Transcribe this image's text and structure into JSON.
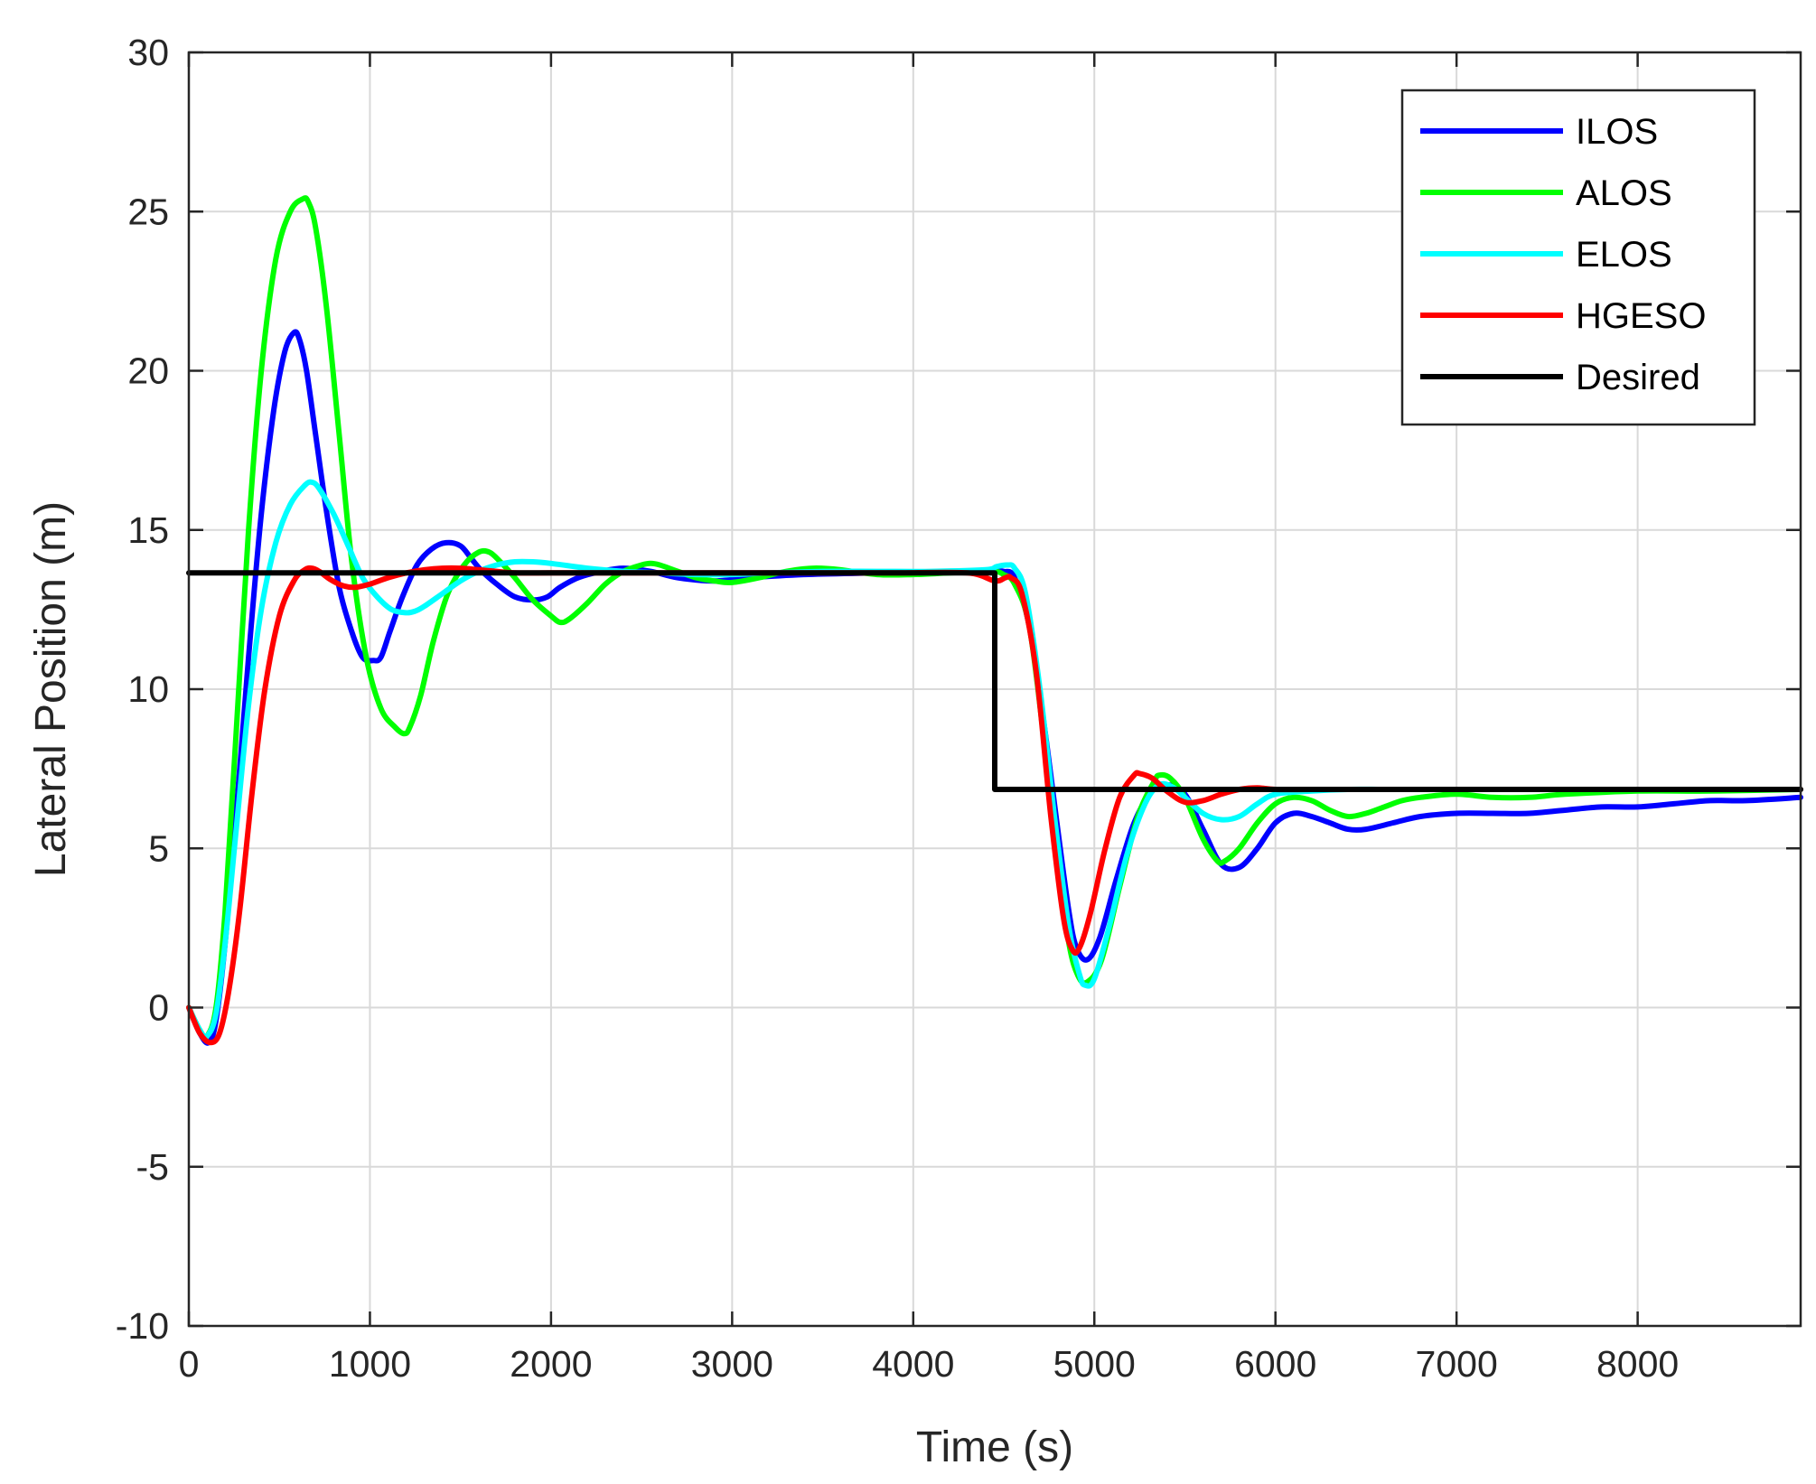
{
  "chart_data": {
    "type": "line",
    "xlabel": "Time (s)",
    "ylabel": "Lateral Position (m)",
    "xlim": [
      0,
      8900
    ],
    "ylim": [
      -10,
      30
    ],
    "xticks": [
      0,
      1000,
      2000,
      3000,
      4000,
      5000,
      6000,
      7000,
      8000
    ],
    "yticks": [
      -10,
      -5,
      0,
      5,
      10,
      15,
      20,
      25,
      30
    ],
    "grid": true,
    "legend": "top-right",
    "series": [
      {
        "name": "ILOS",
        "color": "#0000ff",
        "x": [
          0,
          60,
          110,
          150,
          200,
          260,
          330,
          400,
          470,
          530,
          580,
          610,
          650,
          700,
          760,
          830,
          900,
          960,
          1020,
          1060,
          1110,
          1180,
          1260,
          1340,
          1420,
          1500,
          1560,
          1620,
          1700,
          1800,
          1900,
          1980,
          2050,
          2150,
          2280,
          2400,
          2550,
          2700,
          2900,
          3100,
          3400,
          3800,
          4200,
          4430,
          4500,
          4560,
          4640,
          4720,
          4800,
          4860,
          4900,
          4960,
          5030,
          5120,
          5220,
          5320,
          5400,
          5500,
          5600,
          5700,
          5800,
          5900,
          6000,
          6100,
          6200,
          6300,
          6400,
          6500,
          6650,
          6800,
          7000,
          7200,
          7400,
          7600,
          7800,
          8000,
          8200,
          8400,
          8600,
          8900
        ],
        "y": [
          0,
          -0.8,
          -1.1,
          -0.4,
          2.0,
          6.0,
          11.0,
          15.5,
          18.8,
          20.6,
          21.2,
          21.0,
          20.0,
          18.0,
          15.6,
          13.2,
          11.8,
          11.0,
          10.9,
          11.0,
          11.8,
          12.9,
          13.9,
          14.4,
          14.6,
          14.5,
          14.1,
          13.7,
          13.3,
          12.9,
          12.8,
          12.9,
          13.2,
          13.5,
          13.7,
          13.8,
          13.7,
          13.5,
          13.4,
          13.5,
          13.6,
          13.65,
          13.7,
          13.7,
          13.7,
          13.5,
          12.0,
          9.0,
          5.5,
          3.0,
          1.9,
          1.5,
          2.2,
          4.0,
          5.8,
          6.8,
          7.0,
          6.7,
          5.6,
          4.5,
          4.4,
          5.0,
          5.8,
          6.1,
          6.0,
          5.8,
          5.6,
          5.6,
          5.8,
          6.0,
          6.1,
          6.1,
          6.1,
          6.2,
          6.3,
          6.3,
          6.4,
          6.5,
          6.5,
          6.6
        ]
      },
      {
        "name": "ALOS",
        "color": "#00ff00",
        "x": [
          0,
          60,
          100,
          150,
          200,
          260,
          330,
          400,
          480,
          560,
          630,
          660,
          700,
          760,
          830,
          900,
          980,
          1060,
          1140,
          1190,
          1220,
          1280,
          1350,
          1430,
          1520,
          1600,
          1660,
          1720,
          1800,
          1900,
          2000,
          2050,
          2100,
          2200,
          2300,
          2400,
          2500,
          2550,
          2600,
          2700,
          2800,
          2900,
          3000,
          3150,
          3300,
          3450,
          3600,
          3800,
          4000,
          4200,
          4430,
          4500,
          4560,
          4640,
          4720,
          4800,
          4860,
          4910,
          4960,
          5040,
          5140,
          5240,
          5330,
          5360,
          5420,
          5500,
          5600,
          5680,
          5720,
          5800,
          5900,
          6000,
          6100,
          6200,
          6300,
          6400,
          6500,
          6600,
          6700,
          6800,
          7000,
          7200,
          7400,
          7600,
          8000,
          8400,
          8900
        ],
        "y": [
          0,
          -0.7,
          -0.9,
          0,
          3.0,
          8.5,
          15.0,
          20.0,
          23.5,
          25.0,
          25.4,
          25.3,
          24.5,
          22.0,
          18.0,
          14.0,
          11.0,
          9.4,
          8.8,
          8.6,
          8.8,
          9.8,
          11.5,
          13.0,
          13.9,
          14.3,
          14.3,
          14.0,
          13.5,
          12.8,
          12.3,
          12.1,
          12.2,
          12.7,
          13.3,
          13.7,
          13.9,
          13.95,
          13.9,
          13.7,
          13.5,
          13.4,
          13.35,
          13.5,
          13.7,
          13.8,
          13.75,
          13.6,
          13.6,
          13.65,
          13.7,
          13.6,
          13.3,
          12.0,
          8.5,
          4.5,
          2.0,
          1.0,
          0.8,
          1.5,
          3.8,
          6.0,
          7.1,
          7.3,
          7.2,
          6.6,
          5.3,
          4.6,
          4.6,
          5.0,
          5.8,
          6.4,
          6.6,
          6.5,
          6.2,
          6.0,
          6.1,
          6.3,
          6.5,
          6.6,
          6.7,
          6.6,
          6.6,
          6.7,
          6.8,
          6.8,
          6.85
        ]
      },
      {
        "name": "ELOS",
        "color": "#00ffff",
        "x": [
          0,
          60,
          100,
          150,
          200,
          260,
          330,
          400,
          480,
          560,
          640,
          680,
          720,
          800,
          880,
          960,
          1040,
          1120,
          1200,
          1250,
          1300,
          1400,
          1500,
          1600,
          1700,
          1800,
          1900,
          2000,
          2200,
          2400,
          2600,
          2800,
          3000,
          3200,
          3500,
          3800,
          4100,
          4400,
          4460,
          4520,
          4560,
          4620,
          4700,
          4780,
          4860,
          4920,
          4950,
          5000,
          5080,
          5180,
          5280,
          5360,
          5440,
          5500,
          5600,
          5700,
          5800,
          5900,
          6000,
          6200,
          6400,
          6600,
          6800,
          7000,
          7500,
          8000,
          8900
        ],
        "y": [
          0,
          -0.7,
          -0.9,
          -0.2,
          2.0,
          5.5,
          9.5,
          12.5,
          14.6,
          15.8,
          16.4,
          16.5,
          16.3,
          15.5,
          14.5,
          13.5,
          12.9,
          12.5,
          12.4,
          12.45,
          12.6,
          13.0,
          13.4,
          13.7,
          13.9,
          14.0,
          14.0,
          13.95,
          13.8,
          13.7,
          13.65,
          13.6,
          13.6,
          13.65,
          13.7,
          13.7,
          13.7,
          13.75,
          13.85,
          13.9,
          13.8,
          13.0,
          10.0,
          6.0,
          2.5,
          1.0,
          0.7,
          0.9,
          2.5,
          4.8,
          6.4,
          7.0,
          6.9,
          6.6,
          6.1,
          5.9,
          6.0,
          6.4,
          6.7,
          6.8,
          6.85,
          6.85,
          6.85,
          6.85,
          6.85,
          6.85,
          6.85
        ]
      },
      {
        "name": "HGESO",
        "color": "#ff0000",
        "x": [
          0,
          60,
          120,
          170,
          220,
          280,
          350,
          420,
          500,
          580,
          640,
          680,
          720,
          780,
          850,
          920,
          1000,
          1100,
          1200,
          1300,
          1400,
          1500,
          1600,
          1700,
          1800,
          2000,
          2200,
          2500,
          2800,
          3100,
          3500,
          3900,
          4300,
          4450,
          4510,
          4540,
          4600,
          4680,
          4760,
          4830,
          4880,
          4920,
          4980,
          5060,
          5140,
          5220,
          5250,
          5320,
          5400,
          5500,
          5600,
          5700,
          5800,
          5900,
          6000,
          6200,
          6400,
          6800,
          7400,
          8000,
          8900
        ],
        "y": [
          0,
          -0.8,
          -1.1,
          -0.8,
          0.5,
          3.0,
          6.8,
          10.0,
          12.3,
          13.4,
          13.75,
          13.8,
          13.7,
          13.45,
          13.25,
          13.2,
          13.3,
          13.5,
          13.65,
          13.75,
          13.8,
          13.8,
          13.75,
          13.7,
          13.65,
          13.65,
          13.65,
          13.65,
          13.65,
          13.65,
          13.65,
          13.65,
          13.65,
          13.4,
          13.5,
          13.5,
          13.0,
          10.5,
          6.0,
          2.8,
          1.8,
          1.9,
          3.0,
          5.0,
          6.6,
          7.3,
          7.35,
          7.2,
          6.8,
          6.45,
          6.5,
          6.7,
          6.85,
          6.9,
          6.85,
          6.85,
          6.85,
          6.85,
          6.85,
          6.85,
          6.85
        ]
      },
      {
        "name": "Desired",
        "color": "#000000",
        "x": [
          0,
          4450,
          4450,
          8900
        ],
        "y": [
          13.65,
          13.65,
          6.85,
          6.85
        ]
      }
    ]
  }
}
